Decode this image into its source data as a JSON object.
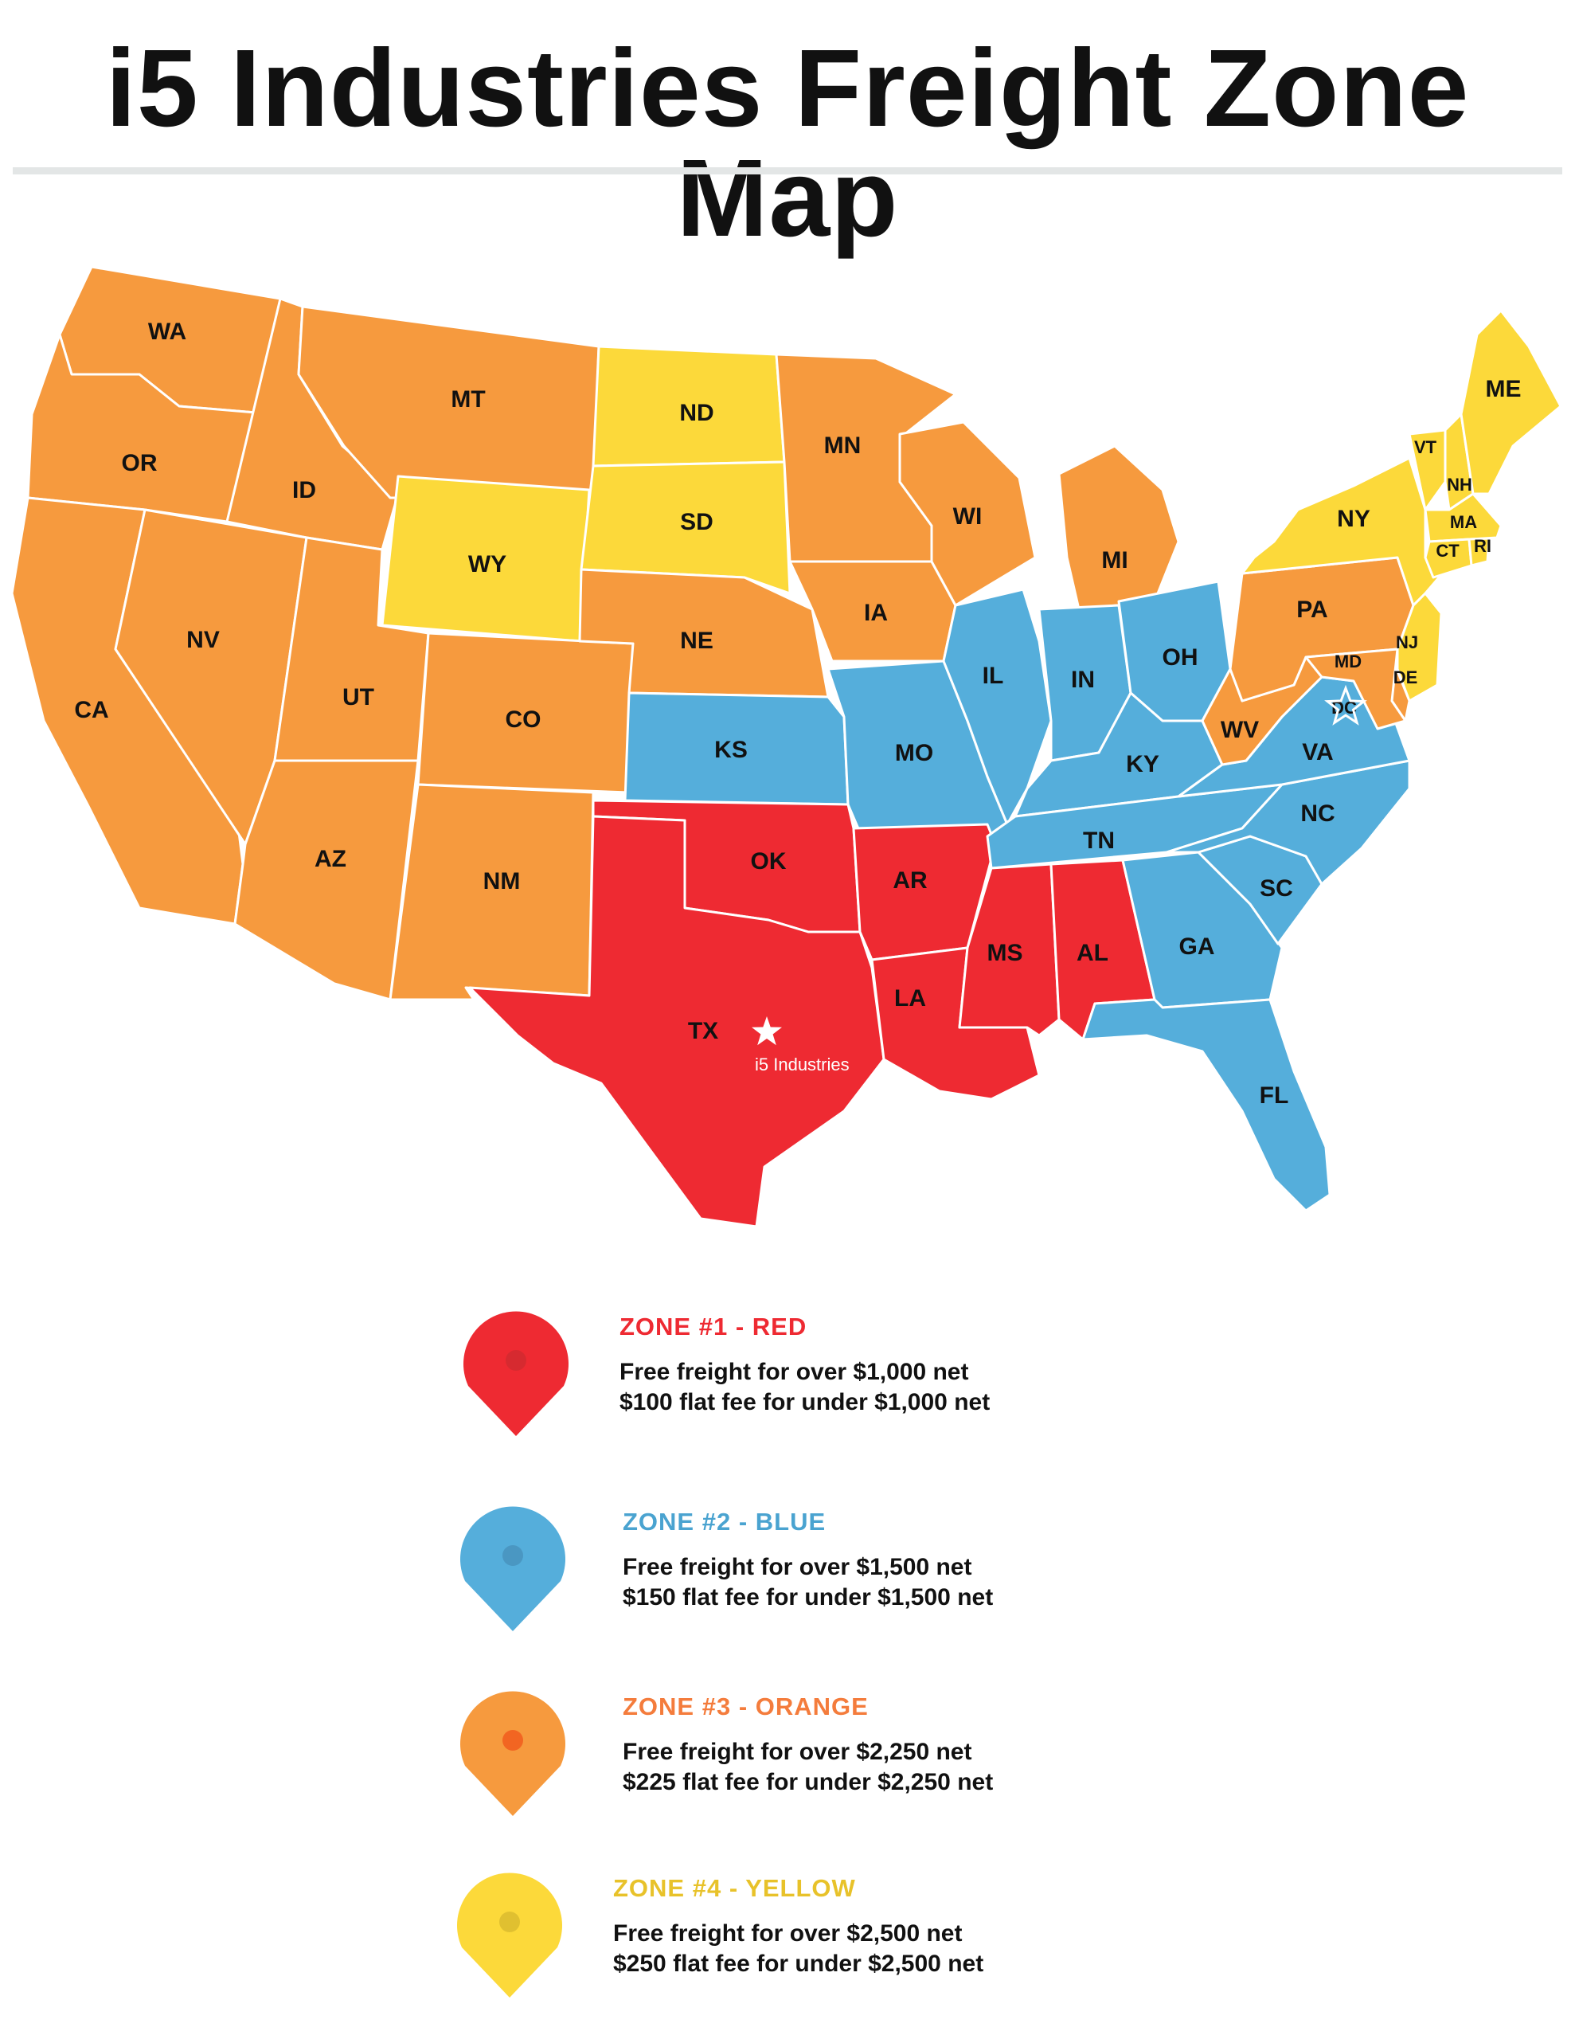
{
  "title": "i5 Industries Freight Zone Map",
  "colors": {
    "red": "#ee2a32",
    "blue": "#55aedb",
    "orange": "#f69a3e",
    "yellow": "#fcd93a",
    "zone3_dot": "#f26522"
  },
  "map": {
    "hq_label": "i5 Industries",
    "states": [
      {
        "code": "WA",
        "zone": "orange"
      },
      {
        "code": "OR",
        "zone": "orange"
      },
      {
        "code": "CA",
        "zone": "orange"
      },
      {
        "code": "ID",
        "zone": "orange"
      },
      {
        "code": "NV",
        "zone": "orange"
      },
      {
        "code": "MT",
        "zone": "orange"
      },
      {
        "code": "WY",
        "zone": "yellow"
      },
      {
        "code": "UT",
        "zone": "orange"
      },
      {
        "code": "AZ",
        "zone": "orange"
      },
      {
        "code": "CO",
        "zone": "orange"
      },
      {
        "code": "NM",
        "zone": "orange"
      },
      {
        "code": "ND",
        "zone": "yellow"
      },
      {
        "code": "SD",
        "zone": "yellow"
      },
      {
        "code": "NE",
        "zone": "orange"
      },
      {
        "code": "KS",
        "zone": "blue"
      },
      {
        "code": "OK",
        "zone": "red"
      },
      {
        "code": "TX",
        "zone": "red"
      },
      {
        "code": "MN",
        "zone": "orange"
      },
      {
        "code": "IA",
        "zone": "orange"
      },
      {
        "code": "MO",
        "zone": "blue"
      },
      {
        "code": "AR",
        "zone": "red"
      },
      {
        "code": "LA",
        "zone": "red"
      },
      {
        "code": "WI",
        "zone": "orange"
      },
      {
        "code": "IL",
        "zone": "blue"
      },
      {
        "code": "MI",
        "zone": "orange"
      },
      {
        "code": "IN",
        "zone": "blue"
      },
      {
        "code": "OH",
        "zone": "blue"
      },
      {
        "code": "KY",
        "zone": "blue"
      },
      {
        "code": "TN",
        "zone": "blue"
      },
      {
        "code": "MS",
        "zone": "red"
      },
      {
        "code": "AL",
        "zone": "red"
      },
      {
        "code": "GA",
        "zone": "blue"
      },
      {
        "code": "FL",
        "zone": "blue"
      },
      {
        "code": "SC",
        "zone": "blue"
      },
      {
        "code": "NC",
        "zone": "blue"
      },
      {
        "code": "VA",
        "zone": "blue"
      },
      {
        "code": "WV",
        "zone": "orange"
      },
      {
        "code": "PA",
        "zone": "orange"
      },
      {
        "code": "NY",
        "zone": "yellow"
      },
      {
        "code": "VT",
        "zone": "yellow"
      },
      {
        "code": "NH",
        "zone": "yellow"
      },
      {
        "code": "ME",
        "zone": "yellow"
      },
      {
        "code": "MA",
        "zone": "yellow"
      },
      {
        "code": "CT",
        "zone": "yellow"
      },
      {
        "code": "RI",
        "zone": "yellow"
      },
      {
        "code": "NJ",
        "zone": "yellow"
      },
      {
        "code": "DE",
        "zone": "orange"
      },
      {
        "code": "MD",
        "zone": "orange"
      },
      {
        "code": "DC",
        "zone": "orange"
      }
    ]
  },
  "zones": [
    {
      "title": "ZONE #1 - RED",
      "color": "red",
      "line1": "Free freight for over $1,000 net",
      "line2": "$100 flat fee for under $1,000 net"
    },
    {
      "title": "ZONE #2 - BLUE",
      "color": "blue",
      "line1": "Free freight for over $1,500 net",
      "line2": "$150 flat fee for under $1,500 net"
    },
    {
      "title": "ZONE #3 - ORANGE",
      "color": "orange",
      "line1": "Free freight for over $2,250 net",
      "line2": "$225 flat fee for under $2,250 net"
    },
    {
      "title": "ZONE #4 - YELLOW",
      "color": "yellow",
      "line1": "Free freight for over $2,500 net",
      "line2": "$250 flat fee for under $2,500 net"
    }
  ]
}
